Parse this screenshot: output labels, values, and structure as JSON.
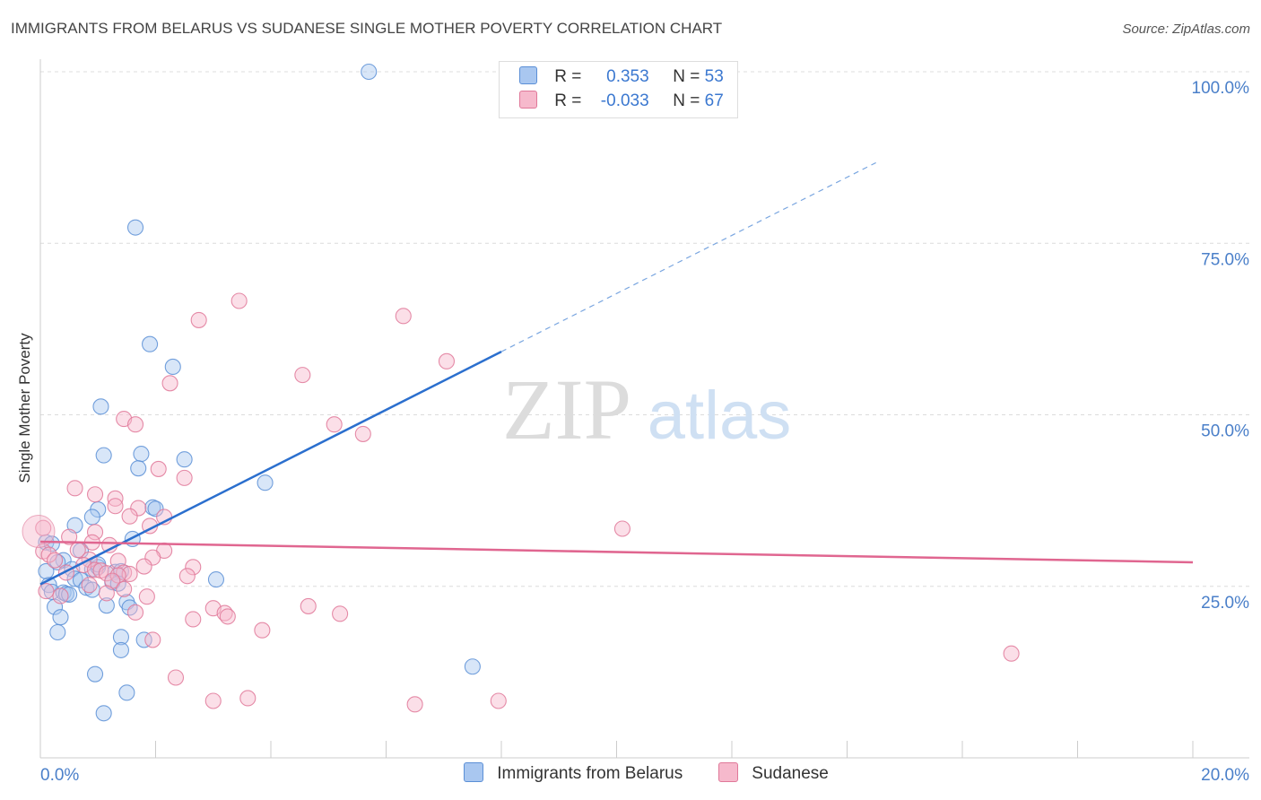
{
  "title": "IMMIGRANTS FROM BELARUS VS SUDANESE SINGLE MOTHER POVERTY CORRELATION CHART",
  "source": "Source: ZipAtlas.com",
  "watermark": {
    "zip": "ZIP",
    "atlas": "atlas"
  },
  "stats": [
    {
      "r_label": "R =",
      "r_value": "0.353",
      "n_label": "N =",
      "n_value": "53",
      "color": "#a9c7f0",
      "border": "#5b8fd6"
    },
    {
      "r_label": "R =",
      "r_value": "-0.033",
      "n_label": "N =",
      "n_value": "67",
      "color": "#f6b9cc",
      "border": "#e07899"
    }
  ],
  "legend": [
    {
      "label": "Immigrants from Belarus",
      "color": "#a9c7f0",
      "border": "#5b8fd6"
    },
    {
      "label": "Sudanese",
      "color": "#f6b9cc",
      "border": "#e07899"
    }
  ],
  "chart_data": {
    "type": "scatter",
    "title": "IMMIGRANTS FROM BELARUS VS SUDANESE SINGLE MOTHER POVERTY CORRELATION CHART",
    "xlabel": "",
    "ylabel": "Single Mother Poverty",
    "xlim": [
      0,
      20
    ],
    "ylim": [
      0,
      100
    ],
    "x_tick_labels": [
      "0.0%",
      "20.0%"
    ],
    "y_tick_labels": [
      "25.0%",
      "50.0%",
      "75.0%",
      "100.0%"
    ],
    "y_ticks": [
      25,
      50,
      75,
      100
    ],
    "grid": true,
    "legend_position": "bottom",
    "series": [
      {
        "name": "Immigrants from Belarus",
        "color": "#5b8fd6",
        "fill": "#a9c7f0",
        "line_color": "#2b6fce",
        "trend": {
          "x0": 0,
          "y0": 25.3,
          "x1": 8.0,
          "y1": 59.2,
          "dash_to_x": 14.5
        },
        "points": [
          [
            5.7,
            100
          ],
          [
            1.65,
            77.3
          ],
          [
            1.9,
            60.3
          ],
          [
            2.3,
            57
          ],
          [
            1.05,
            51.2
          ],
          [
            1.1,
            44.1
          ],
          [
            1.75,
            44.3
          ],
          [
            2.5,
            43.5
          ],
          [
            1.7,
            42.2
          ],
          [
            3.9,
            40.1
          ],
          [
            1.0,
            36.2
          ],
          [
            1.95,
            36.5
          ],
          [
            2.0,
            36.3
          ],
          [
            0.9,
            35.1
          ],
          [
            0.6,
            33.9
          ],
          [
            1.6,
            31.9
          ],
          [
            0.1,
            31.4
          ],
          [
            0.2,
            31.2
          ],
          [
            0.7,
            30.2
          ],
          [
            0.4,
            28.8
          ],
          [
            0.9,
            27.5
          ],
          [
            1.0,
            27.8
          ],
          [
            1.3,
            27.1
          ],
          [
            1.4,
            27.2
          ],
          [
            0.55,
            27.5
          ],
          [
            1.0,
            28.2
          ],
          [
            0.6,
            26.1
          ],
          [
            0.7,
            25.9
          ],
          [
            1.25,
            25.6
          ],
          [
            1.35,
            25.4
          ],
          [
            0.15,
            25.2
          ],
          [
            0.8,
            24.8
          ],
          [
            0.9,
            24.5
          ],
          [
            0.2,
            24.2
          ],
          [
            0.4,
            24.1
          ],
          [
            0.45,
            23.9
          ],
          [
            0.5,
            23.8
          ],
          [
            1.5,
            22.7
          ],
          [
            0.25,
            22.0
          ],
          [
            1.15,
            22.2
          ],
          [
            1.55,
            21.9
          ],
          [
            0.35,
            20.5
          ],
          [
            0.3,
            18.3
          ],
          [
            1.4,
            17.6
          ],
          [
            1.8,
            17.2
          ],
          [
            1.4,
            15.7
          ],
          [
            0.95,
            12.2
          ],
          [
            7.5,
            13.3
          ],
          [
            1.5,
            9.5
          ],
          [
            1.1,
            6.5
          ],
          [
            3.05,
            26.0
          ],
          [
            0.1,
            27.2
          ],
          [
            0.3,
            28.5
          ]
        ]
      },
      {
        "name": "Sudanese",
        "color": "#e07899",
        "fill": "#f6b9cc",
        "line_color": "#e06690",
        "trend": {
          "x0": 0,
          "y0": 31.5,
          "x1": 20,
          "y1": 28.5
        },
        "points": [
          [
            3.45,
            66.6
          ],
          [
            2.75,
            63.8
          ],
          [
            6.3,
            64.4
          ],
          [
            7.05,
            57.8
          ],
          [
            4.55,
            55.8
          ],
          [
            2.25,
            54.6
          ],
          [
            1.45,
            49.4
          ],
          [
            1.65,
            48.6
          ],
          [
            5.1,
            48.6
          ],
          [
            5.6,
            47.2
          ],
          [
            2.05,
            42.1
          ],
          [
            2.5,
            40.8
          ],
          [
            0.6,
            39.3
          ],
          [
            0.95,
            38.4
          ],
          [
            1.3,
            37.8
          ],
          [
            1.3,
            36.7
          ],
          [
            1.7,
            36.4
          ],
          [
            1.55,
            35.2
          ],
          [
            2.15,
            35.1
          ],
          [
            0.05,
            33.5
          ],
          [
            1.9,
            33.8
          ],
          [
            10.1,
            33.4
          ],
          [
            0.5,
            32.2
          ],
          [
            0.95,
            32.9
          ],
          [
            0.9,
            31.4
          ],
          [
            1.2,
            31.0
          ],
          [
            0.65,
            30.3
          ],
          [
            0.05,
            30.1
          ],
          [
            0.15,
            29.6
          ],
          [
            2.15,
            30.2
          ],
          [
            1.95,
            29.2
          ],
          [
            0.85,
            28.9
          ],
          [
            0.25,
            28.8
          ],
          [
            1.35,
            28.7
          ],
          [
            0.75,
            28.1
          ],
          [
            1.8,
            27.9
          ],
          [
            2.65,
            27.8
          ],
          [
            0.95,
            27.4
          ],
          [
            1.05,
            27.3
          ],
          [
            0.45,
            27.0
          ],
          [
            1.15,
            26.9
          ],
          [
            1.45,
            27.0
          ],
          [
            1.55,
            26.8
          ],
          [
            1.35,
            26.6
          ],
          [
            2.55,
            26.5
          ],
          [
            1.25,
            25.8
          ],
          [
            1.45,
            24.6
          ],
          [
            1.15,
            24.0
          ],
          [
            0.35,
            23.6
          ],
          [
            1.85,
            23.5
          ],
          [
            4.65,
            22.1
          ],
          [
            3.0,
            21.8
          ],
          [
            1.65,
            21.2
          ],
          [
            3.2,
            21.1
          ],
          [
            3.25,
            20.6
          ],
          [
            2.65,
            20.2
          ],
          [
            5.2,
            21.0
          ],
          [
            3.85,
            18.6
          ],
          [
            1.95,
            17.2
          ],
          [
            2.35,
            11.7
          ],
          [
            16.85,
            15.2
          ],
          [
            3.0,
            8.3
          ],
          [
            3.6,
            8.7
          ],
          [
            6.5,
            7.8
          ],
          [
            7.95,
            8.3
          ],
          [
            0.1,
            24.3
          ],
          [
            0.85,
            25.2
          ]
        ]
      }
    ]
  }
}
